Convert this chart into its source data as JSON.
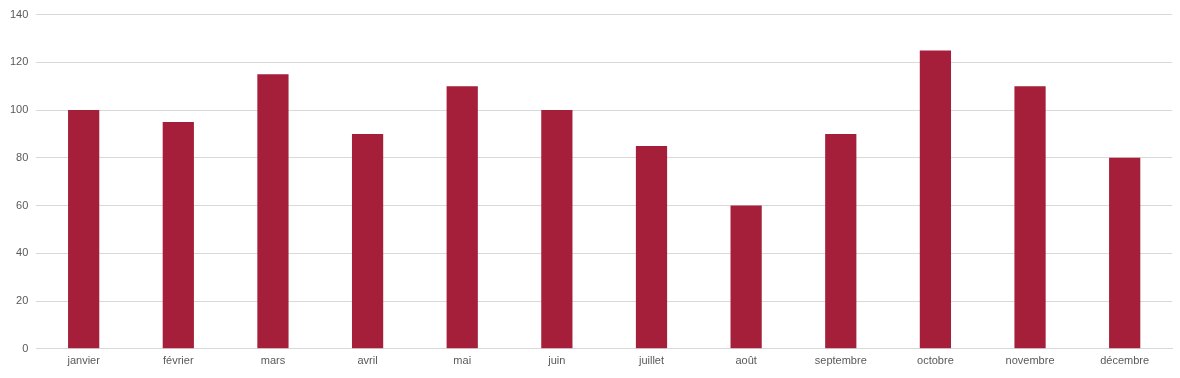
{
  "chart_data": {
    "type": "bar",
    "categories": [
      "janvier",
      "février",
      "mars",
      "avril",
      "mai",
      "juin",
      "juillet",
      "août",
      "septembre",
      "octobre",
      "novembre",
      "décembre"
    ],
    "values": [
      100,
      95,
      115,
      90,
      110,
      100,
      85,
      60,
      90,
      125,
      110,
      80
    ],
    "color": "#a51f3a",
    "ylim": [
      0,
      140
    ],
    "yticks": [
      0,
      20,
      40,
      60,
      80,
      100,
      120,
      140
    ],
    "grid": "y"
  }
}
